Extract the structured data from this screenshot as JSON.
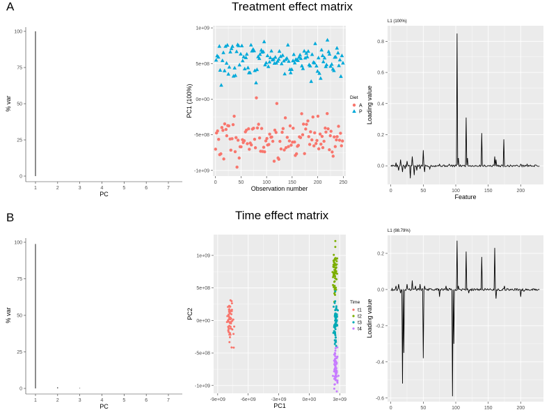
{
  "figure": {
    "panel_a_letter": "A",
    "panel_b_letter": "B",
    "panel_a_title": "Treatment effect matrix",
    "panel_b_title": "Time effect matrix"
  },
  "chart_data": [
    {
      "id": "a_scree",
      "type": "bar",
      "xlabel": "PC",
      "ylabel": "% var",
      "categories": [
        "1",
        "2",
        "3",
        "4",
        "5",
        "6",
        "7"
      ],
      "values": [
        100,
        0,
        0,
        0,
        0,
        0,
        0
      ],
      "ylim": [
        0,
        100
      ],
      "yticks": [
        "0",
        "25",
        "50",
        "75",
        "100"
      ],
      "grid": false
    },
    {
      "id": "a_scores",
      "type": "scatter",
      "xlabel": "Observation number",
      "ylabel": "PC1 (100%)",
      "xlim": [
        -5,
        255
      ],
      "ylim": [
        -1080000000.0,
        1030000000.0
      ],
      "xticks": [
        0,
        50,
        100,
        150,
        200,
        250
      ],
      "yticks": [
        {
          "v": 1000000000.0,
          "label": "1e+09"
        },
        {
          "v": 500000000.0,
          "label": "5e+08"
        },
        {
          "v": 0,
          "label": "0e+00"
        },
        {
          "v": -500000000.0,
          "label": "-5e+08"
        },
        {
          "v": -1000000000.0,
          "label": "-1e+09"
        }
      ],
      "legend_title": "Diet",
      "series": [
        {
          "name": "A",
          "color": "#F8766D",
          "shape": "circle",
          "center": -550000000.0,
          "spread": 160000000.0
        },
        {
          "name": "P",
          "color": "#00A9D9",
          "shape": "triangle",
          "center": 550000000.0,
          "spread": 140000000.0
        }
      ],
      "n_per_group": 125,
      "grid": true
    },
    {
      "id": "a_loading",
      "type": "line",
      "title": "L1 (100%)",
      "xlabel": "Feature",
      "ylabel": "Loading value",
      "xlim": [
        -5,
        235
      ],
      "ylim": [
        -0.12,
        0.9
      ],
      "xticks": [
        0,
        50,
        100,
        150,
        200
      ],
      "yticks": [
        {
          "v": 0,
          "label": "0.0"
        },
        {
          "v": 0.2,
          "label": "0.2"
        },
        {
          "v": 0.4,
          "label": "0.4"
        },
        {
          "v": 0.6,
          "label": "0.6"
        },
        {
          "v": 0.8,
          "label": "0.8"
        }
      ],
      "peaks": [
        [
          8,
          0.02
        ],
        [
          12,
          -0.03
        ],
        [
          15,
          0.04
        ],
        [
          18,
          -0.04
        ],
        [
          22,
          -0.02
        ],
        [
          25,
          0.03
        ],
        [
          30,
          -0.08
        ],
        [
          33,
          0.06
        ],
        [
          36,
          -0.06
        ],
        [
          40,
          -0.03
        ],
        [
          45,
          -0.02
        ],
        [
          50,
          0.1
        ],
        [
          52,
          -0.04
        ],
        [
          60,
          -0.02
        ],
        [
          75,
          0.01
        ],
        [
          90,
          0.01
        ],
        [
          102,
          0.85
        ],
        [
          104,
          0.05
        ],
        [
          116,
          0.31
        ],
        [
          118,
          0.05
        ],
        [
          140,
          0.21
        ],
        [
          160,
          0.06
        ],
        [
          162,
          0.04
        ],
        [
          174,
          0.17
        ],
        [
          200,
          0.01
        ],
        [
          210,
          0.01
        ]
      ],
      "grid": true
    },
    {
      "id": "b_scree",
      "type": "bar",
      "xlabel": "PC",
      "ylabel": "% var",
      "categories": [
        "1",
        "2",
        "3",
        "4",
        "5",
        "6",
        "7"
      ],
      "values": [
        98.79,
        0.8,
        0.3,
        0,
        0,
        0,
        0
      ],
      "ylim": [
        0,
        100
      ],
      "yticks": [
        "0",
        "25",
        "50",
        "75",
        "100"
      ],
      "grid": false
    },
    {
      "id": "b_scores",
      "type": "scatter",
      "xlabel": "PC1",
      "ylabel": "PC2",
      "xlim": [
        -9400000000.0,
        3600000000.0
      ],
      "ylim": [
        -1120000000.0,
        1320000000.0
      ],
      "xticks": [
        {
          "v": -9000000000.0,
          "label": "-9e+09"
        },
        {
          "v": -6000000000.0,
          "label": "-6e+09"
        },
        {
          "v": -3000000000.0,
          "label": "-3e+09"
        },
        {
          "v": 0,
          "label": "0e+00"
        },
        {
          "v": 3000000000.0,
          "label": "3e+09"
        }
      ],
      "yticks": [
        {
          "v": 1000000000.0,
          "label": "1e+09"
        },
        {
          "v": 500000000.0,
          "label": "5e+08"
        },
        {
          "v": 0,
          "label": "0e+00"
        },
        {
          "v": -500000000.0,
          "label": "-5e+08"
        },
        {
          "v": -1000000000.0,
          "label": "-1e+09"
        }
      ],
      "legend_title": "Time",
      "series": [
        {
          "name": "t1",
          "color": "#F8766D",
          "cx": -7800000000.0,
          "sx": 160000000.0,
          "cy": 0,
          "sy": 160000000.0,
          "n": 60
        },
        {
          "name": "t2",
          "color": "#7CAE00",
          "cx": 2500000000.0,
          "sx": 100000000.0,
          "cy": 750000000.0,
          "sy": 180000000.0,
          "n": 60
        },
        {
          "name": "t3",
          "color": "#00A9B5",
          "cx": 2550000000.0,
          "sx": 100000000.0,
          "cy": 0,
          "sy": 180000000.0,
          "n": 60
        },
        {
          "name": "t4",
          "color": "#C77CFF",
          "cx": 2600000000.0,
          "sx": 100000000.0,
          "cy": -750000000.0,
          "sy": 160000000.0,
          "n": 60
        }
      ],
      "grid": true
    },
    {
      "id": "b_loading",
      "type": "line",
      "title": "L1 (98.79%)",
      "xlabel": "Feature",
      "ylabel": "Loading value",
      "xlim": [
        -5,
        235
      ],
      "ylim": [
        -0.62,
        0.3
      ],
      "xticks": [
        0,
        50,
        100,
        150,
        200
      ],
      "yticks": [
        {
          "v": -0.6,
          "label": "-0.6"
        },
        {
          "v": -0.4,
          "label": "-0.4"
        },
        {
          "v": -0.2,
          "label": "-0.2"
        },
        {
          "v": 0,
          "label": "0.0"
        },
        {
          "v": 0.2,
          "label": "0.2"
        }
      ],
      "peaks": [
        [
          8,
          0.02
        ],
        [
          12,
          0.03
        ],
        [
          15,
          -0.02
        ],
        [
          18,
          -0.52
        ],
        [
          20,
          -0.35
        ],
        [
          25,
          0.03
        ],
        [
          33,
          0.05
        ],
        [
          38,
          0.02
        ],
        [
          45,
          0.03
        ],
        [
          50,
          -0.38
        ],
        [
          52,
          0.02
        ],
        [
          75,
          -0.04
        ],
        [
          85,
          0.02
        ],
        [
          95,
          -0.59
        ],
        [
          97,
          -0.3
        ],
        [
          102,
          0.27
        ],
        [
          104,
          0.02
        ],
        [
          116,
          0.21
        ],
        [
          120,
          -0.02
        ],
        [
          140,
          0.18
        ],
        [
          160,
          0.23
        ],
        [
          162,
          -0.05
        ],
        [
          175,
          0.02
        ],
        [
          200,
          -0.04
        ],
        [
          205,
          -0.01
        ]
      ],
      "grid": true
    }
  ]
}
